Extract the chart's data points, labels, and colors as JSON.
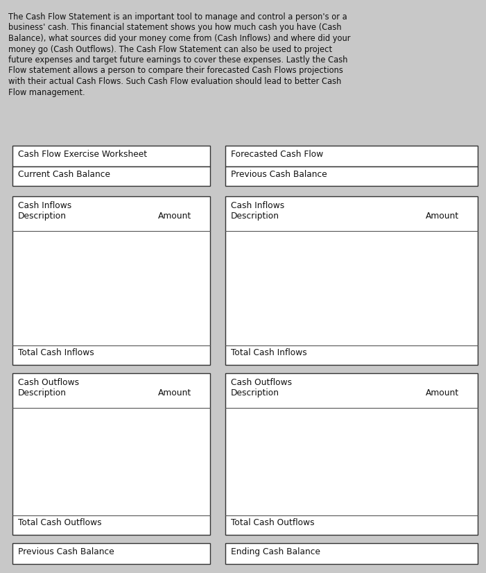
{
  "background_color": "#c8c8c8",
  "box_fill": "#ffffff",
  "box_edge": "#333333",
  "text_color": "#111111",
  "para_lines": [
    "The Cash Flow Statement is an important tool to manage and control a person's or a",
    "business' cash. This financial statement shows you how much cash you have (Cash",
    "Balance), what sources did your money come from (Cash Inflows) and where did your",
    "money go (Cash Outflows). The Cash Flow Statement can also be used to project",
    "future expenses and target future earnings to cover these expenses. Lastly the Cash",
    "Flow statement allows a person to compare their forecasted Cash Flows projections",
    "with their actual Cash Flows. Such Cash Flow evaluation should lead to better Cash",
    "Flow management."
  ],
  "left_header1": "Cash Flow Exercise Worksheet",
  "left_header2": "Current Cash Balance",
  "right_header1": "Forecasted Cash Flow",
  "right_header2": "Previous Cash Balance",
  "left_inflow_title": "Cash Inflows",
  "left_inflow_sub": "Description",
  "left_inflow_amount": "Amount",
  "left_inflow_total": "Total Cash Inflows",
  "right_inflow_title": "Cash Inflows",
  "right_inflow_sub": "Description",
  "right_inflow_amount": "Amount",
  "right_inflow_total": "Total Cash Inflows",
  "left_outflow_title": "Cash Outflows",
  "left_outflow_sub": "Description",
  "left_outflow_amount": "Amount",
  "left_outflow_total": "Total Cash Outflows",
  "right_outflow_title": "Cash Outflows",
  "right_outflow_sub": "Description",
  "right_outflow_amount": "Amount",
  "right_outflow_total": "Total Cash Outflows",
  "left_bottom": "Previous Cash Balance",
  "right_bottom": "Ending Cash Balance",
  "fig_w": 7.01,
  "fig_h": 8.26,
  "dpi": 100
}
